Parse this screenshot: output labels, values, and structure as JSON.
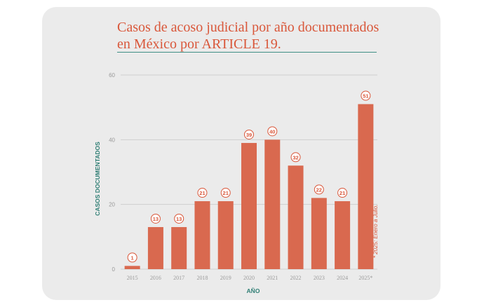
{
  "chart_data": {
    "type": "bar",
    "title": "Casos de acoso judicial por año documentados en México por ARTICLE 19.",
    "xlabel": "AÑO",
    "ylabel": "CASOS DOCUMENTADOS",
    "categories": [
      "2015",
      "2016",
      "2017",
      "2018",
      "2019",
      "2020",
      "2021",
      "2022",
      "2023",
      "2024",
      "2025*"
    ],
    "values": [
      1,
      13,
      13,
      21,
      21,
      39,
      40,
      32,
      22,
      21,
      51
    ],
    "ylim": [
      0,
      60
    ],
    "yticks": [
      "0",
      "20",
      "40",
      "60"
    ],
    "note": "* 2025: Enero a Julio.",
    "grid": true,
    "colors": {
      "bar": "#d9694f",
      "label": "#d9573a",
      "axis_title": "#2f7e74",
      "tick": "#9a9a9a",
      "grid": "#cfcfcf"
    }
  }
}
